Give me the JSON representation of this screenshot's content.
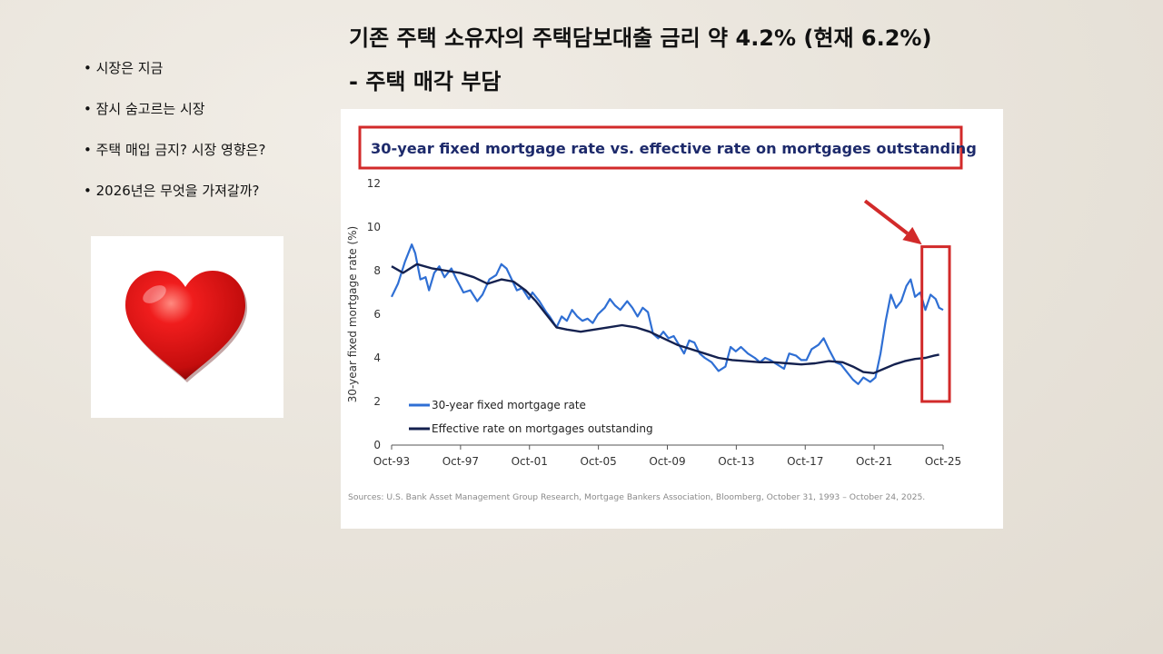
{
  "slide": {
    "title_line1": "기존 주택 소유자의 주택담보대출 금리 약 4.2% (현재 6.2%)",
    "title_line2": "- 주택 매각 부담",
    "bullets": [
      "시장은 지금",
      "잠시 숨고르는 시장",
      "주택 매입 금지? 시장 영향은?",
      "2026년은 무엇을 가져갈까?"
    ],
    "heart_icon": "red-heart-icon"
  },
  "colors": {
    "fixed_rate": "#2f6fd4",
    "effective_rate": "#14214f",
    "highlight": "#d22a2a",
    "title_text": "#1d2a6b"
  },
  "chart_data": {
    "type": "line",
    "title": "30-year fixed mortgage rate vs. effective rate on mortgages outstanding",
    "ylabel": "30-year fixed mortgage rate (%)",
    "xlabel": "",
    "ylim": [
      0,
      12
    ],
    "xlim": [
      1993.83,
      2025.83
    ],
    "yticks": [
      "0",
      "2",
      "4",
      "6",
      "8",
      "10",
      "12"
    ],
    "xticks": [
      {
        "label": "Oct-93",
        "x": 1993.83
      },
      {
        "label": "Oct-97",
        "x": 1997.83
      },
      {
        "label": "Oct-01",
        "x": 2001.83
      },
      {
        "label": "Oct-05",
        "x": 2005.83
      },
      {
        "label": "Oct-09",
        "x": 2009.83
      },
      {
        "label": "Oct-13",
        "x": 2013.83
      },
      {
        "label": "Oct-17",
        "x": 2017.83
      },
      {
        "label": "Oct-21",
        "x": 2021.83
      },
      {
        "label": "Oct-25",
        "x": 2025.83
      }
    ],
    "grid": false,
    "legend_position": "bottom-left",
    "series": [
      {
        "name": "30-year fixed mortgage rate",
        "points": [
          [
            1993.83,
            6.8
          ],
          [
            1994.2,
            7.4
          ],
          [
            1994.6,
            8.4
          ],
          [
            1995.0,
            9.2
          ],
          [
            1995.2,
            8.8
          ],
          [
            1995.5,
            7.6
          ],
          [
            1995.8,
            7.7
          ],
          [
            1996.0,
            7.1
          ],
          [
            1996.3,
            7.9
          ],
          [
            1996.6,
            8.2
          ],
          [
            1996.9,
            7.7
          ],
          [
            1997.3,
            8.1
          ],
          [
            1997.6,
            7.6
          ],
          [
            1998.0,
            7.0
          ],
          [
            1998.4,
            7.1
          ],
          [
            1998.8,
            6.6
          ],
          [
            1999.1,
            6.9
          ],
          [
            1999.5,
            7.6
          ],
          [
            1999.9,
            7.8
          ],
          [
            2000.2,
            8.3
          ],
          [
            2000.5,
            8.1
          ],
          [
            2000.8,
            7.6
          ],
          [
            2001.1,
            7.1
          ],
          [
            2001.4,
            7.2
          ],
          [
            2001.8,
            6.7
          ],
          [
            2002.0,
            7.0
          ],
          [
            2002.4,
            6.6
          ],
          [
            2002.8,
            6.1
          ],
          [
            2003.0,
            5.9
          ],
          [
            2003.4,
            5.4
          ],
          [
            2003.7,
            5.9
          ],
          [
            2004.0,
            5.7
          ],
          [
            2004.3,
            6.2
          ],
          [
            2004.6,
            5.9
          ],
          [
            2004.9,
            5.7
          ],
          [
            2005.2,
            5.8
          ],
          [
            2005.5,
            5.6
          ],
          [
            2005.8,
            6.0
          ],
          [
            2006.2,
            6.3
          ],
          [
            2006.5,
            6.7
          ],
          [
            2006.8,
            6.4
          ],
          [
            2007.1,
            6.2
          ],
          [
            2007.5,
            6.6
          ],
          [
            2007.8,
            6.3
          ],
          [
            2008.1,
            5.9
          ],
          [
            2008.4,
            6.3
          ],
          [
            2008.7,
            6.1
          ],
          [
            2009.0,
            5.1
          ],
          [
            2009.3,
            4.9
          ],
          [
            2009.6,
            5.2
          ],
          [
            2009.9,
            4.9
          ],
          [
            2010.2,
            5.0
          ],
          [
            2010.5,
            4.6
          ],
          [
            2010.8,
            4.2
          ],
          [
            2011.1,
            4.8
          ],
          [
            2011.4,
            4.7
          ],
          [
            2011.7,
            4.2
          ],
          [
            2012.0,
            4.0
          ],
          [
            2012.4,
            3.8
          ],
          [
            2012.8,
            3.4
          ],
          [
            2013.2,
            3.6
          ],
          [
            2013.5,
            4.5
          ],
          [
            2013.8,
            4.3
          ],
          [
            2014.1,
            4.5
          ],
          [
            2014.5,
            4.2
          ],
          [
            2014.9,
            4.0
          ],
          [
            2015.2,
            3.8
          ],
          [
            2015.5,
            4.0
          ],
          [
            2015.8,
            3.9
          ],
          [
            2016.2,
            3.7
          ],
          [
            2016.6,
            3.5
          ],
          [
            2016.9,
            4.2
          ],
          [
            2017.3,
            4.1
          ],
          [
            2017.6,
            3.9
          ],
          [
            2017.9,
            3.9
          ],
          [
            2018.2,
            4.4
          ],
          [
            2018.6,
            4.6
          ],
          [
            2018.9,
            4.9
          ],
          [
            2019.2,
            4.4
          ],
          [
            2019.6,
            3.8
          ],
          [
            2019.9,
            3.7
          ],
          [
            2020.2,
            3.4
          ],
          [
            2020.6,
            3.0
          ],
          [
            2020.9,
            2.8
          ],
          [
            2021.2,
            3.1
          ],
          [
            2021.6,
            2.9
          ],
          [
            2021.9,
            3.1
          ],
          [
            2022.2,
            4.2
          ],
          [
            2022.5,
            5.7
          ],
          [
            2022.8,
            6.9
          ],
          [
            2023.1,
            6.3
          ],
          [
            2023.4,
            6.6
          ],
          [
            2023.7,
            7.3
          ],
          [
            2023.95,
            7.6
          ],
          [
            2024.2,
            6.8
          ],
          [
            2024.5,
            7.0
          ],
          [
            2024.8,
            6.2
          ],
          [
            2025.1,
            6.9
          ],
          [
            2025.4,
            6.7
          ],
          [
            2025.6,
            6.3
          ],
          [
            2025.83,
            6.2
          ]
        ]
      },
      {
        "name": "Effective rate on mortgages outstanding",
        "points": [
          [
            1993.83,
            8.2
          ],
          [
            1994.5,
            7.9
          ],
          [
            1995.3,
            8.3
          ],
          [
            1996.2,
            8.1
          ],
          [
            1997.0,
            8.0
          ],
          [
            1997.8,
            7.9
          ],
          [
            1998.6,
            7.7
          ],
          [
            1999.4,
            7.4
          ],
          [
            2000.2,
            7.6
          ],
          [
            2000.9,
            7.5
          ],
          [
            2001.6,
            7.1
          ],
          [
            2002.2,
            6.6
          ],
          [
            2002.8,
            6.0
          ],
          [
            2003.4,
            5.4
          ],
          [
            2004.0,
            5.3
          ],
          [
            2004.8,
            5.2
          ],
          [
            2005.6,
            5.3
          ],
          [
            2006.4,
            5.4
          ],
          [
            2007.2,
            5.5
          ],
          [
            2008.0,
            5.4
          ],
          [
            2008.8,
            5.2
          ],
          [
            2009.6,
            4.9
          ],
          [
            2010.4,
            4.6
          ],
          [
            2011.2,
            4.4
          ],
          [
            2012.0,
            4.2
          ],
          [
            2012.8,
            4.0
          ],
          [
            2013.6,
            3.9
          ],
          [
            2014.4,
            3.85
          ],
          [
            2015.2,
            3.8
          ],
          [
            2016.0,
            3.8
          ],
          [
            2016.8,
            3.75
          ],
          [
            2017.6,
            3.7
          ],
          [
            2018.4,
            3.75
          ],
          [
            2019.2,
            3.85
          ],
          [
            2020.0,
            3.8
          ],
          [
            2020.6,
            3.6
          ],
          [
            2021.2,
            3.35
          ],
          [
            2021.8,
            3.3
          ],
          [
            2022.4,
            3.5
          ],
          [
            2023.0,
            3.7
          ],
          [
            2023.6,
            3.85
          ],
          [
            2024.2,
            3.95
          ],
          [
            2024.8,
            4.0
          ],
          [
            2025.3,
            4.1
          ],
          [
            2025.6,
            4.15
          ]
        ]
      }
    ],
    "annotations": [
      {
        "type": "highlight-box",
        "x_start": 2024.6,
        "x_end": 2026.2,
        "y_start": 2.0,
        "y_end": 9.1
      },
      {
        "type": "arrow",
        "from": [
          2021.3,
          11.2
        ],
        "to": [
          2024.6,
          9.2
        ]
      }
    ],
    "source": "Sources: U.S. Bank Asset Management Group Research, Mortgage Bankers Association, Bloomberg, October 31, 1993 – October 24, 2025."
  }
}
